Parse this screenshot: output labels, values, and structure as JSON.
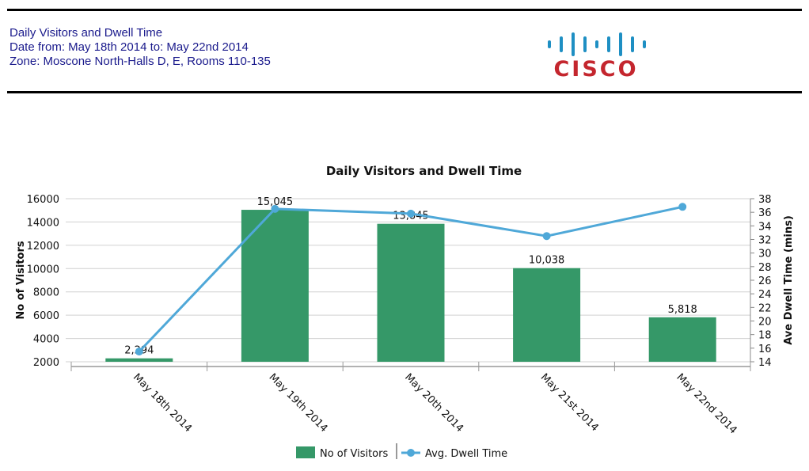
{
  "header": {
    "line1": "Daily Visitors and Dwell Time",
    "line2": "Date from: May 18th 2014 to: May 22nd 2014",
    "line3": "Zone: Moscone North-Halls D, E, Rooms 110-135",
    "logo_text": "CISCO",
    "logo_color": "#c4262e",
    "logo_bar_color": "#1e8fc3"
  },
  "chart_data": {
    "type": "bar+line",
    "title": "Daily Visitors and Dwell Time",
    "categories": [
      "May 18th 2014",
      "May 19th 2014",
      "May 20th 2014",
      "May 21st 2014",
      "May 22nd 2014"
    ],
    "series": [
      {
        "name": "No of Visitors",
        "type": "bar",
        "axis": "left",
        "color": "#359868",
        "values": [
          2294,
          15045,
          13845,
          10038,
          5818
        ],
        "labels": [
          "2,294",
          "15,045",
          "13,845",
          "10,038",
          "5,818"
        ]
      },
      {
        "name": "Avg. Dwell Time",
        "type": "line",
        "axis": "right",
        "color": "#4fa8d8",
        "values": [
          15.5,
          36.5,
          35.8,
          32.5,
          36.8
        ]
      }
    ],
    "y_left": {
      "label": "No of Visitors",
      "min": 2000,
      "max": 16000,
      "ticks": [
        2000,
        4000,
        6000,
        8000,
        10000,
        12000,
        14000,
        16000
      ]
    },
    "y_right": {
      "label": "Ave Dwell Time (mins)",
      "min": 14,
      "max": 38,
      "ticks": [
        14,
        16,
        18,
        20,
        22,
        24,
        26,
        28,
        30,
        32,
        34,
        36,
        38
      ]
    },
    "grid": true,
    "legend_position": "bottom-center"
  }
}
